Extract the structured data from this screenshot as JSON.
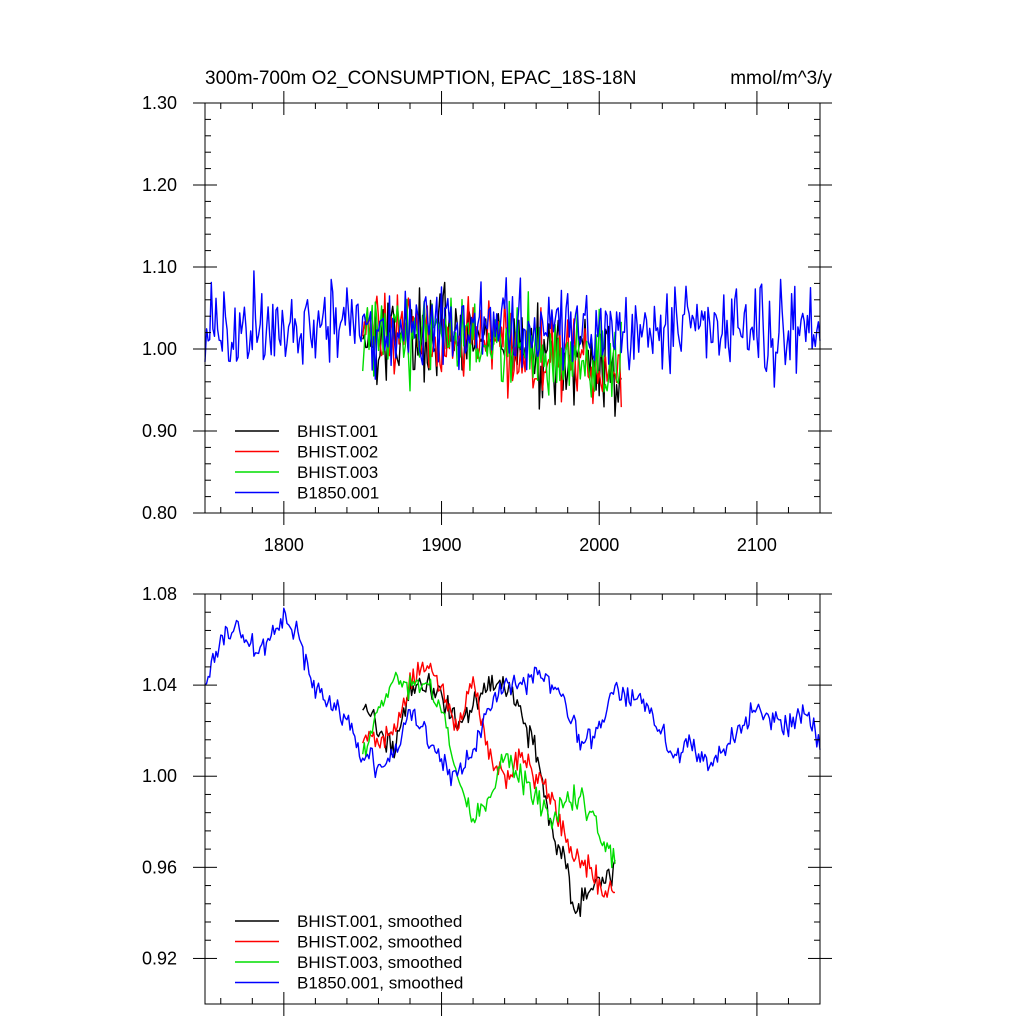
{
  "chart_data": [
    {
      "type": "line",
      "title": "300m-700m O2_CONSUMPTION, EPAC_18S-18N",
      "title_units": "mmol/m^3/y",
      "xlim": [
        1750,
        2140
      ],
      "ylim": [
        0.8,
        1.3
      ],
      "x_ticks": [
        1800,
        1900,
        2000,
        2100
      ],
      "x_tick_labels": [
        "1800",
        "1900",
        "2000",
        "2100"
      ],
      "y_ticks": [
        0.8,
        0.9,
        1.0,
        1.1,
        1.2,
        1.3
      ],
      "y_tick_labels": [
        "0.80",
        "0.90",
        "1.00",
        "1.10",
        "1.20",
        "1.30"
      ],
      "legend_position": "bottom-left",
      "series": [
        {
          "name": "BHIST.001",
          "color": "#000000",
          "x_start": 1850,
          "x_end": 2014,
          "mean": 1.02,
          "amplitude": 0.085,
          "trend": -0.05
        },
        {
          "name": "BHIST.002",
          "color": "#ff0000",
          "x_start": 1850,
          "x_end": 2014,
          "mean": 1.02,
          "amplitude": 0.085,
          "trend": -0.05
        },
        {
          "name": "BHIST.003",
          "color": "#00dd00",
          "x_start": 1850,
          "x_end": 2014,
          "mean": 1.02,
          "amplitude": 0.085,
          "trend": -0.05
        },
        {
          "name": "B1850.001",
          "color": "#0000ff",
          "x_start": 1750,
          "x_end": 2140,
          "mean": 1.025,
          "amplitude": 0.08,
          "trend": 0.0
        }
      ]
    },
    {
      "type": "line",
      "title": "",
      "xlim": [
        1750,
        2140
      ],
      "ylim": [
        0.9,
        1.08
      ],
      "x_ticks": [
        1800,
        1900,
        2000,
        2100
      ],
      "x_tick_labels": [
        "",
        "",
        "",
        ""
      ],
      "y_ticks": [
        0.92,
        0.96,
        1.0,
        1.04,
        1.08
      ],
      "y_tick_labels": [
        "0.92",
        "0.96",
        "1.00",
        "1.04",
        "1.08"
      ],
      "legend_position": "bottom-left",
      "series": [
        {
          "name": "BHIST.001, smoothed",
          "color": "#000000",
          "x": [
            1850,
            1860,
            1870,
            1880,
            1890,
            1900,
            1910,
            1920,
            1930,
            1940,
            1950,
            1960,
            1970,
            1980,
            1985,
            1990,
            2000,
            2010
          ],
          "y": [
            1.03,
            1.02,
            1.015,
            1.035,
            1.04,
            1.035,
            1.025,
            1.03,
            1.04,
            1.04,
            1.03,
            1.01,
            0.975,
            0.96,
            0.935,
            0.95,
            0.955,
            0.96
          ]
        },
        {
          "name": "BHIST.002, smoothed",
          "color": "#ff0000",
          "x": [
            1850,
            1860,
            1870,
            1880,
            1890,
            1900,
            1910,
            1920,
            1930,
            1940,
            1950,
            1960,
            1970,
            1980,
            1990,
            2000,
            2010
          ],
          "y": [
            1.02,
            1.015,
            1.02,
            1.04,
            1.05,
            1.04,
            1.02,
            1.04,
            1.01,
            1.0,
            1.01,
            1.0,
            0.99,
            0.97,
            0.96,
            0.955,
            0.95
          ]
        },
        {
          "name": "BHIST.003, smoothed",
          "color": "#00dd00",
          "x": [
            1850,
            1860,
            1870,
            1880,
            1890,
            1900,
            1910,
            1920,
            1930,
            1940,
            1950,
            1960,
            1970,
            1980,
            1990,
            2000,
            2010
          ],
          "y": [
            1.01,
            1.03,
            1.04,
            1.04,
            1.04,
            1.03,
            1.0,
            0.98,
            0.99,
            1.01,
            1.0,
            0.99,
            0.98,
            0.99,
            0.99,
            0.975,
            0.962
          ]
        },
        {
          "name": "B1850.001, smoothed",
          "color": "#0000ff",
          "x": [
            1750,
            1760,
            1770,
            1780,
            1790,
            1800,
            1810,
            1820,
            1830,
            1840,
            1850,
            1860,
            1870,
            1880,
            1890,
            1900,
            1910,
            1920,
            1930,
            1940,
            1950,
            1960,
            1970,
            1980,
            1990,
            2000,
            2010,
            2020,
            2030,
            2040,
            2050,
            2060,
            2070,
            2080,
            2090,
            2100,
            2110,
            2120,
            2130,
            2140
          ],
          "y": [
            1.04,
            1.06,
            1.065,
            1.055,
            1.06,
            1.068,
            1.06,
            1.04,
            1.03,
            1.025,
            1.01,
            1.005,
            1.01,
            1.03,
            1.02,
            1.005,
            1.0,
            1.01,
            1.03,
            1.04,
            1.04,
            1.045,
            1.04,
            1.03,
            1.015,
            1.02,
            1.04,
            1.035,
            1.03,
            1.02,
            1.01,
            1.015,
            1.005,
            1.015,
            1.02,
            1.03,
            1.025,
            1.02,
            1.03,
            1.015
          ]
        }
      ]
    }
  ]
}
